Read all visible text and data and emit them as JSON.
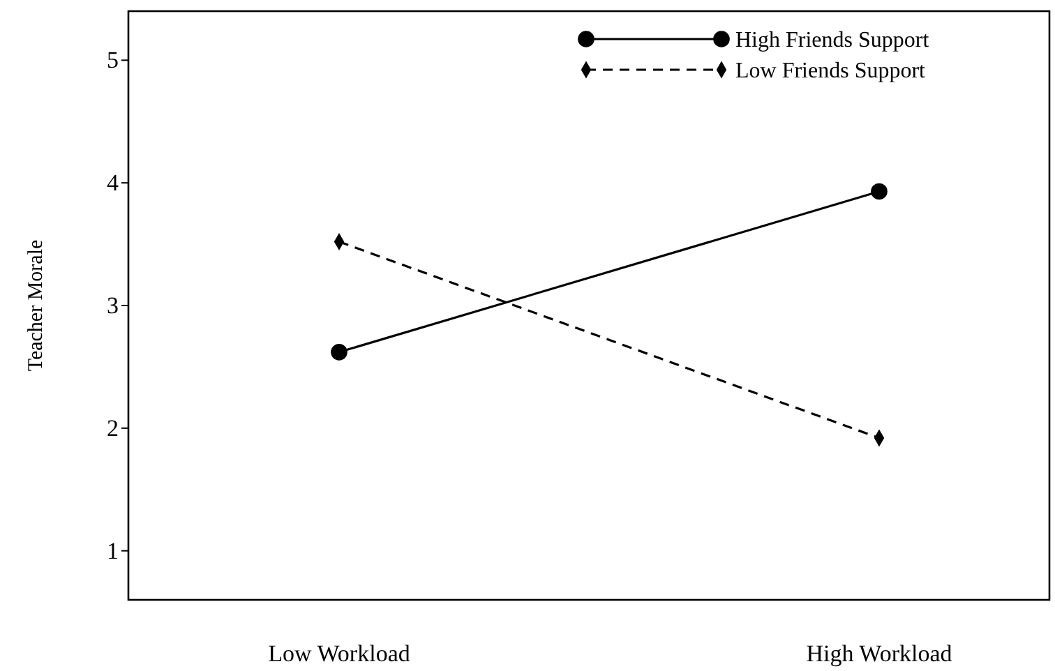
{
  "chart_data": {
    "type": "line",
    "ylabel": "Teacher Morale",
    "categories": [
      "Low Workload",
      "High Workload"
    ],
    "ylim": [
      0.6,
      5.4
    ],
    "yticks": [
      1,
      2,
      3,
      4,
      5
    ],
    "legend": "top right",
    "grid": false,
    "series": [
      {
        "name": "High Friends Support",
        "color": "#000000",
        "values": [
          2.62,
          3.93
        ],
        "marker": "circle",
        "line_style": "solid"
      },
      {
        "name": "Low Friends Support",
        "color": "#000000",
        "values": [
          3.52,
          1.92
        ],
        "marker": "diamond",
        "line_style": "dashed"
      }
    ]
  }
}
